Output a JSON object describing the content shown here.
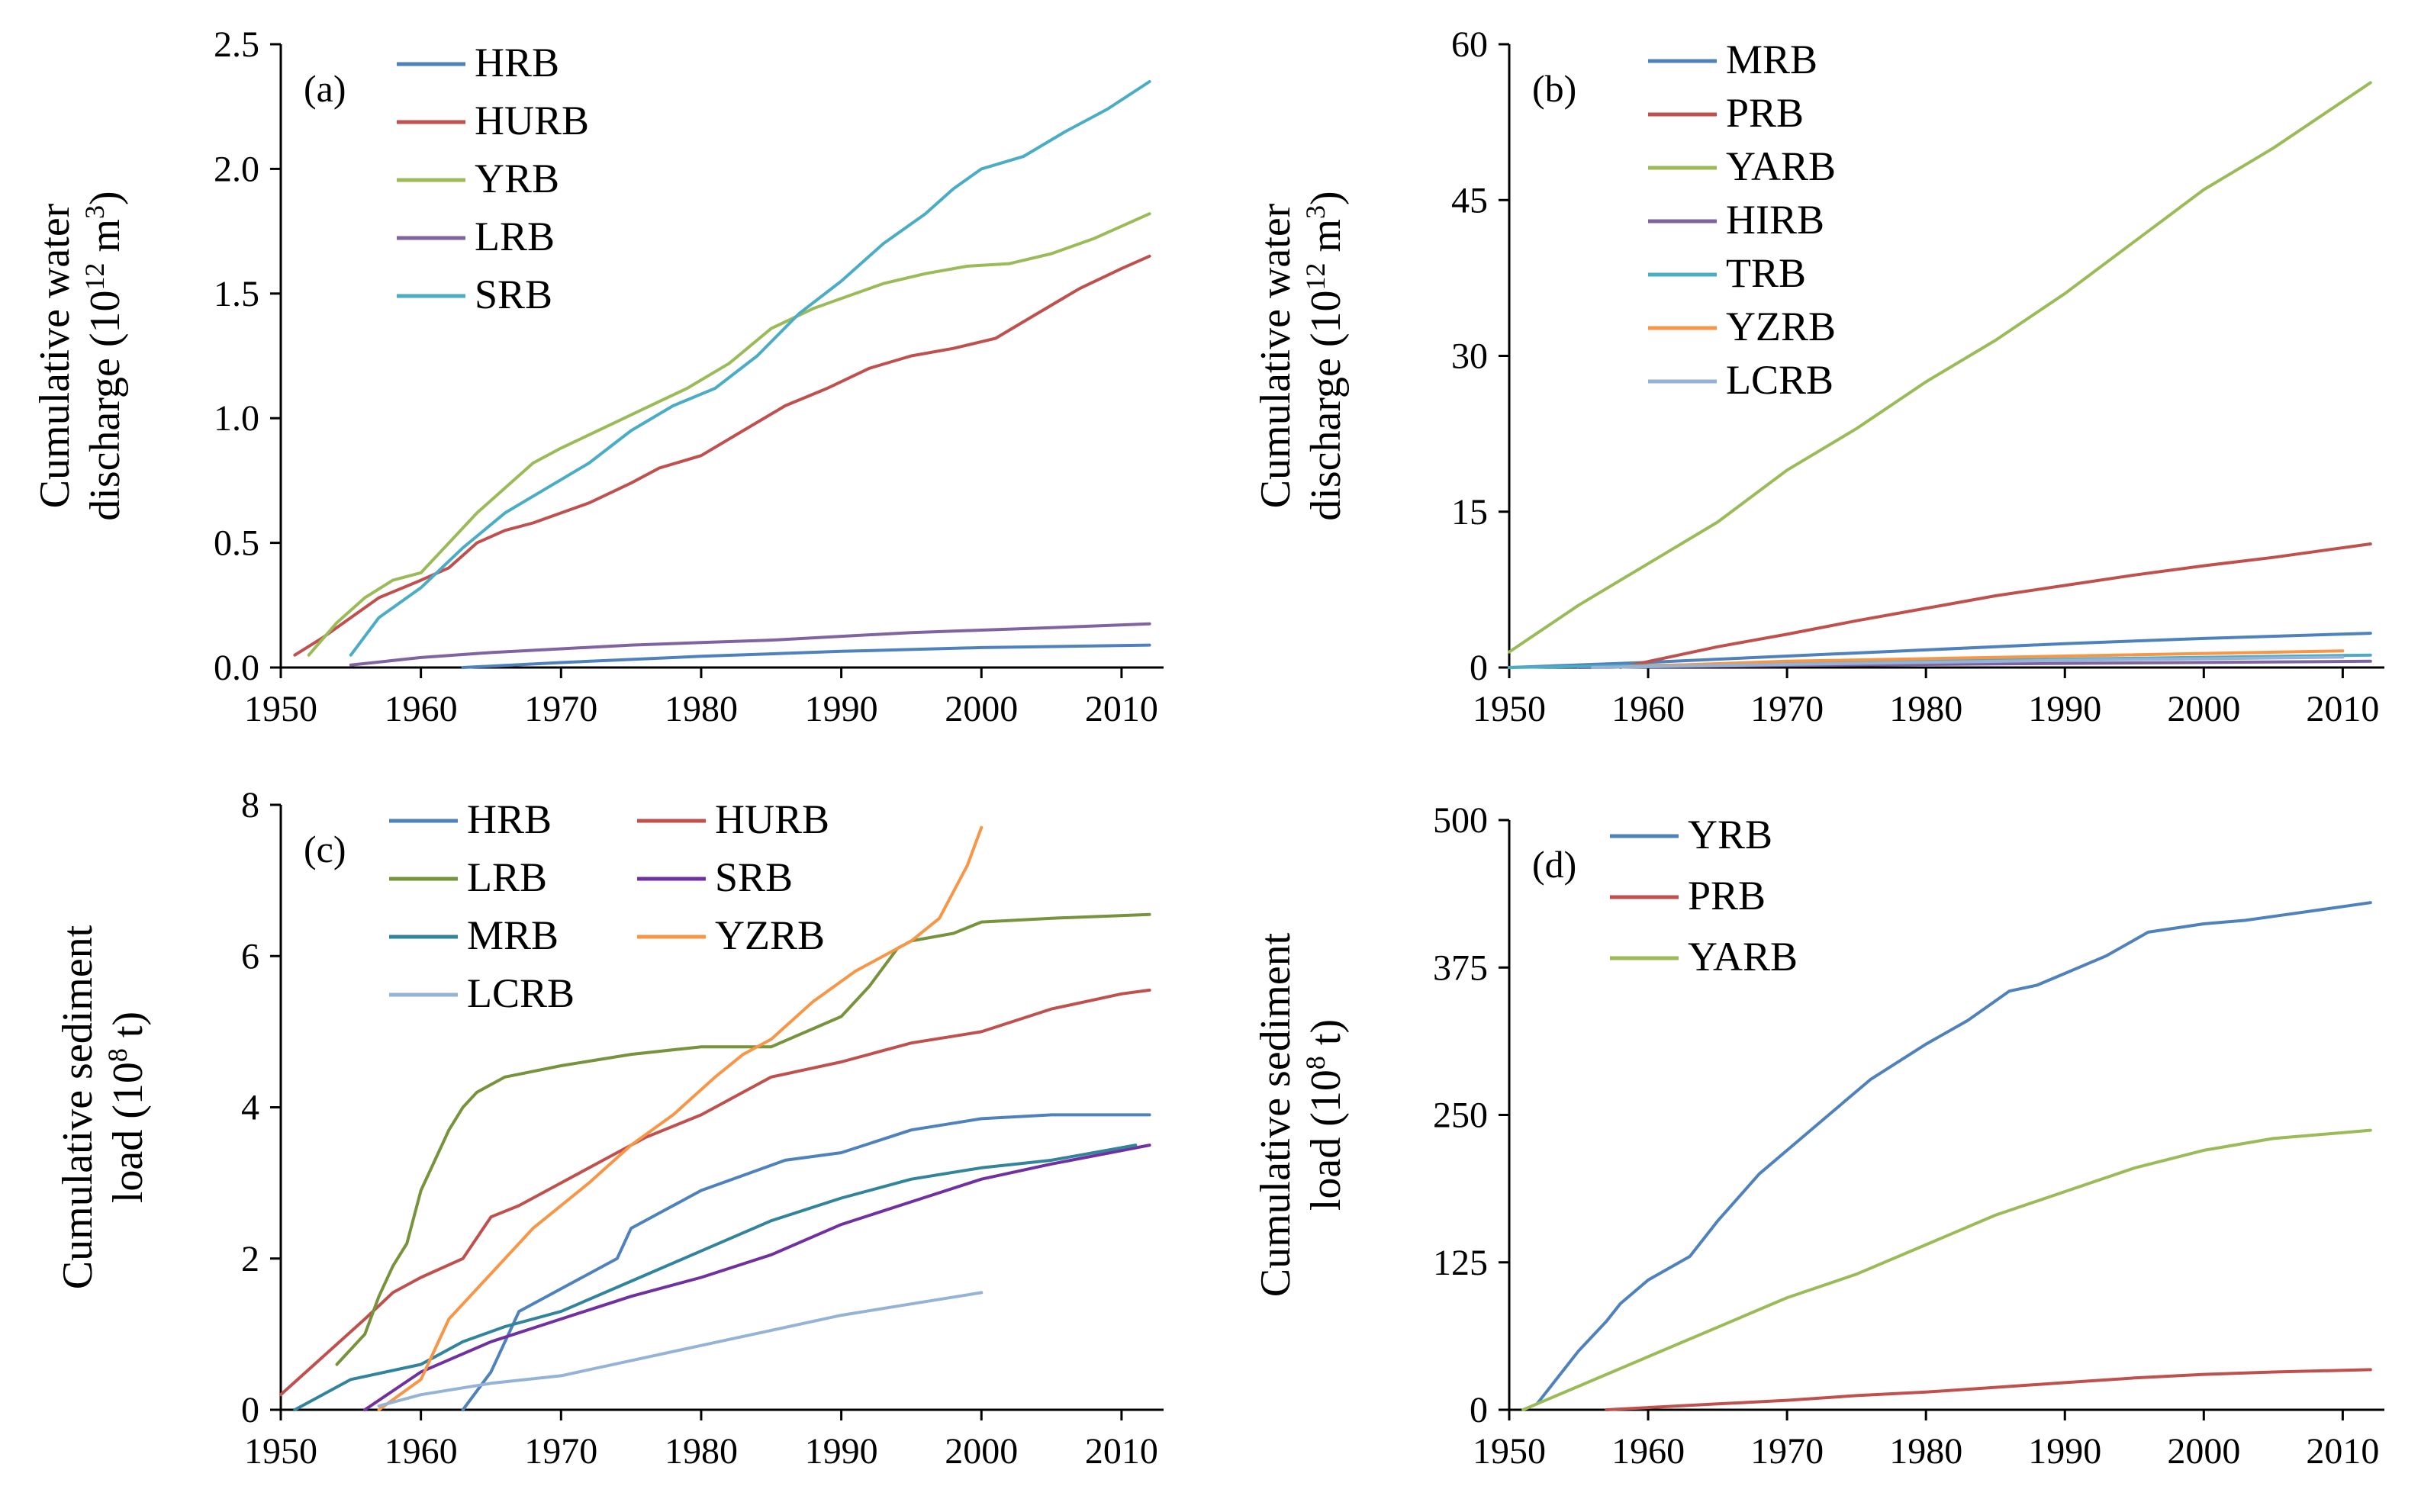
{
  "chart_data": [
    {
      "id": "a",
      "type": "line",
      "panel_label": "(a)",
      "ylabel_lines": [
        "Cumulative water",
        "discharge  (10",
        "12",
        " m",
        "3",
        ")"
      ],
      "xlim": [
        1950,
        2013
      ],
      "ylim": [
        0,
        2.5
      ],
      "xticks": [
        1950,
        1960,
        1970,
        1980,
        1990,
        2000,
        2010
      ],
      "yticks": [
        0,
        0.5,
        1.0,
        1.5,
        2.0,
        2.5
      ],
      "ytick_labels": [
        "0.0",
        "0.5",
        "1.0",
        "1.5",
        "2.0",
        "2.5"
      ],
      "legend_columns": 1,
      "series": [
        {
          "name": "HRB",
          "color": "#4f81bd",
          "x": [
            1963,
            1970,
            1980,
            1990,
            2000,
            2012
          ],
          "y": [
            0,
            0.02,
            0.045,
            0.065,
            0.08,
            0.09
          ]
        },
        {
          "name": "HURB",
          "color": "#c0504d",
          "x": [
            1951,
            1953,
            1955,
            1957,
            1960,
            1962,
            1964,
            1966,
            1968,
            1970,
            1972,
            1975,
            1977,
            1980,
            1983,
            1986,
            1989,
            1992,
            1995,
            1998,
            2001,
            2004,
            2007,
            2010,
            2012
          ],
          "y": [
            0.05,
            0.12,
            0.2,
            0.28,
            0.35,
            0.4,
            0.5,
            0.55,
            0.58,
            0.62,
            0.66,
            0.74,
            0.8,
            0.85,
            0.95,
            1.05,
            1.12,
            1.2,
            1.25,
            1.28,
            1.32,
            1.42,
            1.52,
            1.6,
            1.65
          ]
        },
        {
          "name": "YRB",
          "color": "#9bbb59",
          "x": [
            1952,
            1954,
            1956,
            1958,
            1960,
            1962,
            1964,
            1966,
            1968,
            1970,
            1973,
            1976,
            1979,
            1982,
            1985,
            1988,
            1990,
            1993,
            1996,
            1999,
            2002,
            2005,
            2008,
            2012
          ],
          "y": [
            0.05,
            0.18,
            0.28,
            0.35,
            0.38,
            0.5,
            0.62,
            0.72,
            0.82,
            0.88,
            0.96,
            1.04,
            1.12,
            1.22,
            1.36,
            1.44,
            1.48,
            1.54,
            1.58,
            1.61,
            1.62,
            1.66,
            1.72,
            1.82
          ]
        },
        {
          "name": "LRB",
          "color": "#8064a2",
          "x": [
            1955,
            1960,
            1965,
            1970,
            1975,
            1980,
            1985,
            1990,
            1995,
            2000,
            2005,
            2012
          ],
          "y": [
            0.01,
            0.04,
            0.06,
            0.075,
            0.09,
            0.1,
            0.11,
            0.125,
            0.14,
            0.15,
            0.16,
            0.175
          ]
        },
        {
          "name": "SRB",
          "color": "#4bacc6",
          "x": [
            1955,
            1957,
            1960,
            1963,
            1966,
            1969,
            1972,
            1975,
            1978,
            1981,
            1984,
            1987,
            1990,
            1993,
            1996,
            1998,
            2000,
            2003,
            2006,
            2009,
            2012
          ],
          "y": [
            0.05,
            0.2,
            0.32,
            0.48,
            0.62,
            0.72,
            0.82,
            0.95,
            1.05,
            1.12,
            1.25,
            1.42,
            1.55,
            1.7,
            1.82,
            1.92,
            2.0,
            2.05,
            2.15,
            2.24,
            2.35
          ]
        }
      ]
    },
    {
      "id": "b",
      "type": "line",
      "panel_label": "(b)",
      "ylabel_lines": [
        "Cumulative water",
        "discharge  (10",
        "12",
        " m",
        "3",
        ")"
      ],
      "xlim": [
        1950,
        2013
      ],
      "ylim": [
        0,
        60
      ],
      "xticks": [
        1950,
        1960,
        1970,
        1980,
        1990,
        2000,
        2010
      ],
      "yticks": [
        0,
        15,
        30,
        45,
        60
      ],
      "ytick_labels": [
        "0",
        "15",
        "30",
        "45",
        "60"
      ],
      "legend_columns": 1,
      "series": [
        {
          "name": "MRB",
          "color": "#4f81bd",
          "x": [
            1950,
            1960,
            1970,
            1980,
            1990,
            2000,
            2012
          ],
          "y": [
            0,
            0.5,
            1.1,
            1.7,
            2.3,
            2.8,
            3.3
          ]
        },
        {
          "name": "PRB",
          "color": "#c0504d",
          "x": [
            1958,
            1965,
            1970,
            1975,
            1980,
            1985,
            1990,
            1995,
            2000,
            2005,
            2012
          ],
          "y": [
            0,
            2.0,
            3.2,
            4.5,
            5.7,
            6.9,
            7.9,
            8.9,
            9.8,
            10.6,
            11.9
          ]
        },
        {
          "name": "YARB",
          "color": "#9bbb59",
          "x": [
            1950,
            1955,
            1960,
            1965,
            1970,
            1975,
            1980,
            1985,
            1990,
            1995,
            2000,
            2005,
            2010,
            2012
          ],
          "y": [
            1.5,
            6,
            10,
            14,
            19,
            23,
            27.5,
            31.5,
            36,
            41,
            46,
            50,
            54.5,
            56.3
          ]
        },
        {
          "name": "HIRB",
          "color": "#8064a2",
          "x": [
            1955,
            1970,
            1990,
            2012
          ],
          "y": [
            0,
            0.2,
            0.4,
            0.6
          ]
        },
        {
          "name": "TRB",
          "color": "#4bacc6",
          "x": [
            1950,
            1970,
            1990,
            2012
          ],
          "y": [
            0,
            0.4,
            0.8,
            1.2
          ]
        },
        {
          "name": "YZRB",
          "color": "#f79646",
          "x": [
            1957,
            1970,
            1990,
            2010
          ],
          "y": [
            0,
            0.6,
            1.1,
            1.6
          ]
        },
        {
          "name": "LCRB",
          "color": "#95b3d7",
          "x": [
            1956,
            1970,
            1990,
            2010
          ],
          "y": [
            0,
            0.3,
            0.7,
            1.0
          ]
        }
      ]
    },
    {
      "id": "c",
      "type": "line",
      "panel_label": "(c)",
      "ylabel_lines": [
        "Cumulative sediment",
        "load (10",
        "8",
        " t)"
      ],
      "xlim": [
        1950,
        2013
      ],
      "ylim": [
        0,
        8
      ],
      "xticks": [
        1950,
        1960,
        1970,
        1980,
        1990,
        2000,
        2010
      ],
      "yticks": [
        0,
        2,
        4,
        6,
        8
      ],
      "ytick_labels": [
        "0",
        "2",
        "4",
        "6",
        "8"
      ],
      "legend_columns": 2,
      "series": [
        {
          "name": "HRB",
          "color": "#4f81bd",
          "x": [
            1963,
            1965,
            1967,
            1970,
            1972,
            1974,
            1975,
            1977,
            1980,
            1983,
            1986,
            1990,
            1995,
            2000,
            2005,
            2010,
            2012
          ],
          "y": [
            0,
            0.5,
            1.3,
            1.6,
            1.8,
            2.0,
            2.4,
            2.6,
            2.9,
            3.1,
            3.3,
            3.4,
            3.7,
            3.85,
            3.9,
            3.9,
            3.9
          ]
        },
        {
          "name": "HURB",
          "color": "#c0504d",
          "x": [
            1950,
            1953,
            1956,
            1958,
            1960,
            1963,
            1965,
            1967,
            1970,
            1973,
            1976,
            1980,
            1985,
            1990,
            1995,
            2000,
            2005,
            2010,
            2012
          ],
          "y": [
            0.2,
            0.7,
            1.2,
            1.55,
            1.75,
            2.0,
            2.55,
            2.7,
            3.0,
            3.3,
            3.6,
            3.9,
            4.4,
            4.6,
            4.85,
            5.0,
            5.3,
            5.5,
            5.55
          ]
        },
        {
          "name": "LRB",
          "color": "#77933c",
          "x": [
            1954,
            1956,
            1957,
            1958,
            1959,
            1960,
            1961,
            1962,
            1963,
            1964,
            1966,
            1970,
            1975,
            1980,
            1985,
            1990,
            1992,
            1994,
            1995,
            1998,
            2000,
            2005,
            2012
          ],
          "y": [
            0.6,
            1.0,
            1.5,
            1.9,
            2.2,
            2.9,
            3.3,
            3.7,
            4.0,
            4.2,
            4.4,
            4.55,
            4.7,
            4.8,
            4.8,
            5.2,
            5.6,
            6.1,
            6.2,
            6.3,
            6.45,
            6.5,
            6.55
          ]
        },
        {
          "name": "SRB",
          "color": "#7030a0",
          "x": [
            1956,
            1960,
            1965,
            1970,
            1975,
            1980,
            1985,
            1990,
            1995,
            2000,
            2005,
            2012
          ],
          "y": [
            0,
            0.5,
            0.9,
            1.2,
            1.5,
            1.75,
            2.05,
            2.45,
            2.75,
            3.05,
            3.25,
            3.5
          ]
        },
        {
          "name": "MRB",
          "color": "#31849b",
          "x": [
            1951,
            1955,
            1960,
            1963,
            1966,
            1970,
            1975,
            1980,
            1985,
            1990,
            1995,
            2000,
            2005,
            2011
          ],
          "y": [
            0,
            0.4,
            0.6,
            0.9,
            1.1,
            1.3,
            1.7,
            2.1,
            2.5,
            2.8,
            3.05,
            3.2,
            3.3,
            3.5
          ]
        },
        {
          "name": "YZRB",
          "color": "#f79646",
          "x": [
            1957,
            1960,
            1962,
            1965,
            1968,
            1972,
            1975,
            1978,
            1981,
            1983,
            1985,
            1988,
            1991,
            1993,
            1995,
            1997,
            1999,
            2000
          ],
          "y": [
            0,
            0.4,
            1.2,
            1.8,
            2.4,
            3.0,
            3.5,
            3.9,
            4.4,
            4.7,
            4.9,
            5.4,
            5.8,
            6.0,
            6.2,
            6.5,
            7.2,
            7.7
          ]
        },
        {
          "name": "LCRB",
          "color": "#95b3d7",
          "x": [
            1957,
            1960,
            1965,
            1970,
            1975,
            1980,
            1985,
            1990,
            1995,
            2000
          ],
          "y": [
            0.05,
            0.2,
            0.35,
            0.45,
            0.65,
            0.85,
            1.05,
            1.25,
            1.4,
            1.55
          ]
        }
      ]
    },
    {
      "id": "d",
      "type": "line",
      "panel_label": "(d)",
      "ylabel_lines": [
        "Cumulative sediment",
        "load (10",
        "8",
        " t)"
      ],
      "xlim": [
        1950,
        2013
      ],
      "ylim": [
        0,
        500
      ],
      "xticks": [
        1950,
        1960,
        1970,
        1980,
        1990,
        2000,
        2010
      ],
      "yticks": [
        0,
        125,
        250,
        375,
        500
      ],
      "ytick_labels": [
        "0",
        "125",
        "250",
        "375",
        "500"
      ],
      "legend_columns": 1,
      "series": [
        {
          "name": "YRB",
          "color": "#4f81bd",
          "x": [
            1952,
            1953,
            1955,
            1957,
            1958,
            1960,
            1963,
            1965,
            1968,
            1970,
            1973,
            1976,
            1980,
            1983,
            1986,
            1988,
            1990,
            1993,
            1996,
            2000,
            2003,
            2006,
            2009,
            2012
          ],
          "y": [
            5,
            20,
            50,
            75,
            90,
            110,
            130,
            160,
            200,
            220,
            250,
            280,
            310,
            330,
            355,
            360,
            370,
            385,
            405,
            412,
            415,
            420,
            425,
            430
          ]
        },
        {
          "name": "PRB",
          "color": "#c0504d",
          "x": [
            1957,
            1965,
            1970,
            1975,
            1980,
            1985,
            1990,
            1995,
            2000,
            2005,
            2012
          ],
          "y": [
            0,
            5,
            8,
            12,
            15,
            19,
            23,
            27,
            30,
            32,
            34
          ]
        },
        {
          "name": "YARB",
          "color": "#9bbb59",
          "x": [
            1951,
            1955,
            1960,
            1965,
            1970,
            1975,
            1980,
            1985,
            1990,
            1995,
            2000,
            2005,
            2010,
            2012
          ],
          "y": [
            0,
            20,
            45,
            70,
            95,
            115,
            140,
            165,
            185,
            205,
            220,
            230,
            235,
            237
          ]
        }
      ]
    }
  ]
}
